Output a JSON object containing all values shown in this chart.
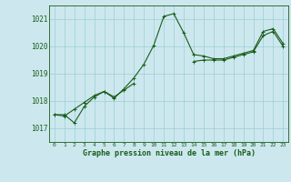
{
  "title": "Graphe pression niveau de la mer (hPa)",
  "background_color": "#cce8ee",
  "line_color": "#1a5c1a",
  "grid_color": "#9ecdd4",
  "x_ticks": [
    0,
    1,
    2,
    3,
    4,
    5,
    6,
    7,
    8,
    9,
    10,
    11,
    12,
    13,
    14,
    15,
    16,
    17,
    18,
    19,
    20,
    21,
    22,
    23
  ],
  "ylim": [
    1016.5,
    1021.5
  ],
  "yticks": [
    1017,
    1018,
    1019,
    1020,
    1021
  ],
  "series": [
    [
      1017.5,
      1017.5,
      1017.2,
      1017.8,
      1018.15,
      1018.35,
      1018.1,
      1018.45,
      1018.85,
      1019.35,
      1020.05,
      1021.1,
      1021.2,
      1020.5,
      1019.7,
      1019.65,
      1019.55,
      1019.55,
      1019.65,
      1019.75,
      1019.85,
      1020.55,
      1020.65,
      1020.1
    ],
    [
      1017.5,
      1017.45,
      1017.7,
      1017.95,
      1018.2,
      1018.35,
      1018.15,
      1018.4,
      1018.65,
      null,
      null,
      null,
      null,
      null,
      null,
      null,
      null,
      null,
      null,
      null,
      null,
      null,
      null,
      null
    ],
    [
      null,
      null,
      null,
      null,
      null,
      null,
      null,
      null,
      null,
      null,
      null,
      null,
      null,
      null,
      1019.45,
      1019.5,
      1019.5,
      1019.5,
      1019.6,
      1019.7,
      1019.8,
      1020.4,
      1020.55,
      1020.0
    ]
  ]
}
